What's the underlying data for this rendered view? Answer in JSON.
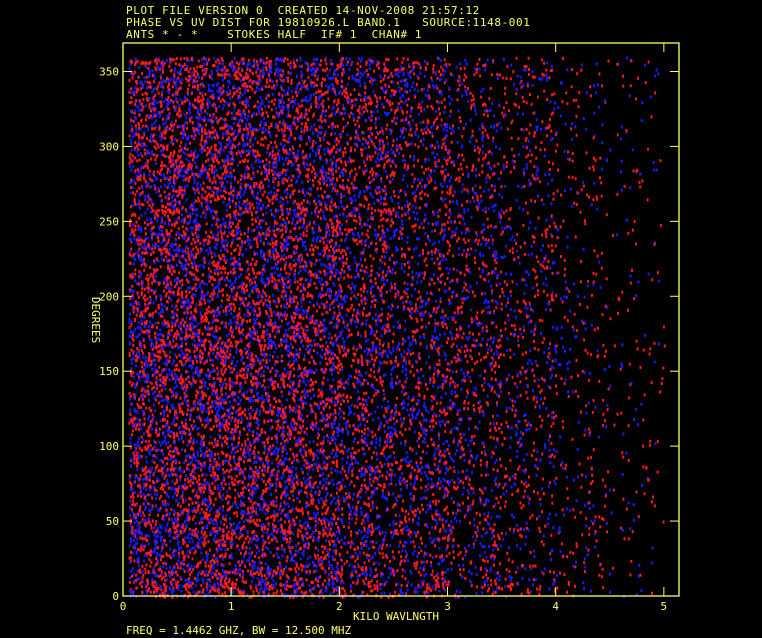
{
  "header": {
    "line1": "PLOT FILE VERSION 0  CREATED 14-NOV-2008 21:57:12",
    "line2": "PHASE VS UV DIST FOR 19810926.L BAND.1   SOURCE:1148-001",
    "line3": "ANTS * - *    STOKES HALF  IF# 1  CHAN# 1"
  },
  "footer": "FREQ = 1.4462 GHZ, BW = 12.500 MHZ",
  "colors": {
    "axis": "#ffff66",
    "background": "#000000",
    "series_a": "#ff1a1a",
    "series_b": "#1a1aff"
  },
  "chart_data": {
    "type": "scatter",
    "xlabel": "KILO WAVLNGTH",
    "ylabel": "DEGREES",
    "xlim": [
      0,
      5.14
    ],
    "ylim": [
      0,
      369
    ],
    "xticks": [
      "0",
      "1",
      "2",
      "3",
      "4",
      "5"
    ],
    "yticks": [
      "0",
      "50",
      "100",
      "150",
      "200",
      "250",
      "300",
      "350"
    ],
    "grid": false,
    "legend": "none",
    "series": [
      {
        "color": "#ff1a1a",
        "x_range": [
          0.05,
          5.0
        ],
        "y_range": [
          0,
          360
        ],
        "relative_density_by_x_bin": {
          "bin_edges": [
            0,
            0.5,
            1,
            1.5,
            2,
            2.5,
            3,
            3.5,
            4,
            4.5,
            5
          ],
          "density": [
            1,
            1,
            0.95,
            0.85,
            0.65,
            0.5,
            0.38,
            0.28,
            0.14,
            0.07
          ]
        }
      },
      {
        "color": "#1a1aff",
        "x_range": [
          0.05,
          4.95
        ],
        "y_range": [
          0,
          360
        ],
        "relative_density_by_x_bin": {
          "bin_edges": [
            0,
            0.5,
            1,
            1.5,
            2,
            2.5,
            3,
            3.5,
            4,
            4.5,
            5
          ],
          "density": [
            0.9,
            0.9,
            0.85,
            0.8,
            0.6,
            0.5,
            0.35,
            0.22,
            0.1,
            0.05
          ]
        }
      }
    ]
  }
}
